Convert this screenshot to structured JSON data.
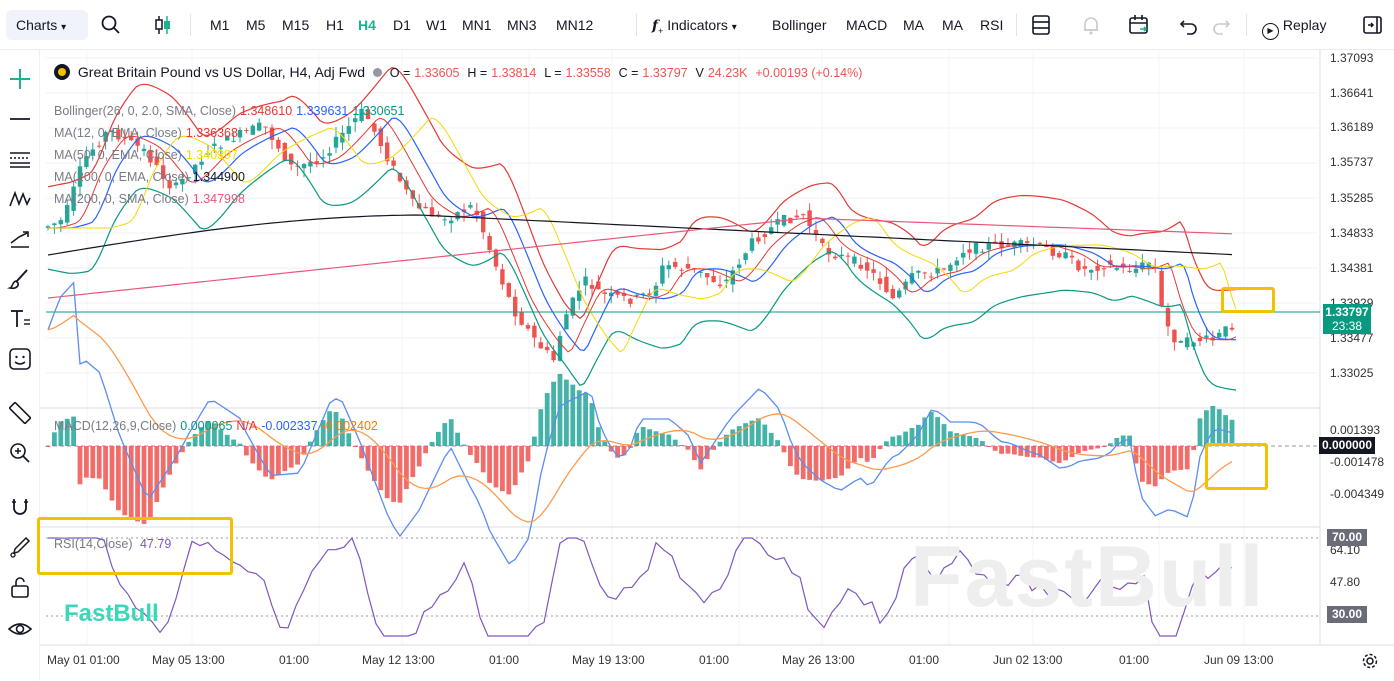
{
  "toolbar": {
    "charts_label": "Charts",
    "timeframes": [
      "M1",
      "M5",
      "M15",
      "H1",
      "H4",
      "D1",
      "W1",
      "MN1",
      "MN3",
      "MN12"
    ],
    "active_timeframe": "H4",
    "indicators_label": "Indicators",
    "indicator_buttons": [
      "Bollinger",
      "MACD",
      "MA",
      "MA",
      "RSI"
    ],
    "replay_label": "Replay"
  },
  "symbol": {
    "title": "Great Britain Pound vs US Dollar, H4, Adj Fwd",
    "open_label": "O =",
    "open": "1.33605",
    "high_label": "H =",
    "high": "1.33814",
    "low_label": "L =",
    "low": "1.33558",
    "close_label": "C =",
    "close": "1.33797",
    "volume_label": "V",
    "volume": "24.23K",
    "change": "+0.00193 (+0.14%)"
  },
  "overlays": [
    {
      "label": "Bollinger(26, 0, 2.0, SMA, Close)",
      "values": [
        "1.348610",
        "1.339631",
        "1.330651"
      ],
      "colors": [
        "#e53935",
        "#2962ff",
        "#089981"
      ]
    },
    {
      "label": "MA(12, 0, EMA, Close)",
      "values": [
        "1.336368"
      ],
      "colors": [
        "#e53935"
      ]
    },
    {
      "label": "MA(50, 0, EMA, Close)",
      "values": [
        "1.340397"
      ],
      "colors": [
        "#f5d800"
      ]
    },
    {
      "label": "MA(200, 0, EMA, Close)",
      "values": [
        "1.344900"
      ],
      "colors": [
        "#131722"
      ]
    },
    {
      "label": "MA(200, 0, SMA, Close)",
      "values": [
        "1.347998"
      ],
      "colors": [
        "#e8577a"
      ]
    }
  ],
  "macd": {
    "label": "MACD(12,26,9,Close)",
    "values": [
      "0.000065",
      "N/A",
      "-0.002337",
      "-0.002402"
    ],
    "colors": [
      "#089981",
      "#e53935",
      "#2962ff",
      "#f57c00"
    ],
    "axis": [
      "0.001393",
      "0.000000",
      "-0.001478",
      "-0.004349"
    ]
  },
  "rsi": {
    "label": "RSI(14,Close)",
    "value": "47.79",
    "axis": [
      "70.00",
      "64.10",
      "47.80",
      "30.00"
    ]
  },
  "price_axis": [
    "1.37093",
    "1.36641",
    "1.36189",
    "1.35737",
    "1.35285",
    "1.34833",
    "1.34381",
    "1.33929",
    "1.33477",
    "1.33025"
  ],
  "current_price": {
    "price": "1.33797",
    "countdown": "23:38"
  },
  "time_axis": [
    "May 01 01:00",
    "May 05 13:00",
    "01:00",
    "May 12 13:00",
    "01:00",
    "May 19 13:00",
    "01:00",
    "May 26 13:00",
    "01:00",
    "Jun 02 13:00",
    "01:00",
    "Jun 09 13:00"
  ],
  "watermark": "FastBull",
  "logo": "FastBull",
  "colors": {
    "up": "#26a69a",
    "down": "#ef5350",
    "accent": "#1bb38d",
    "highlight": "#f2c100"
  }
}
